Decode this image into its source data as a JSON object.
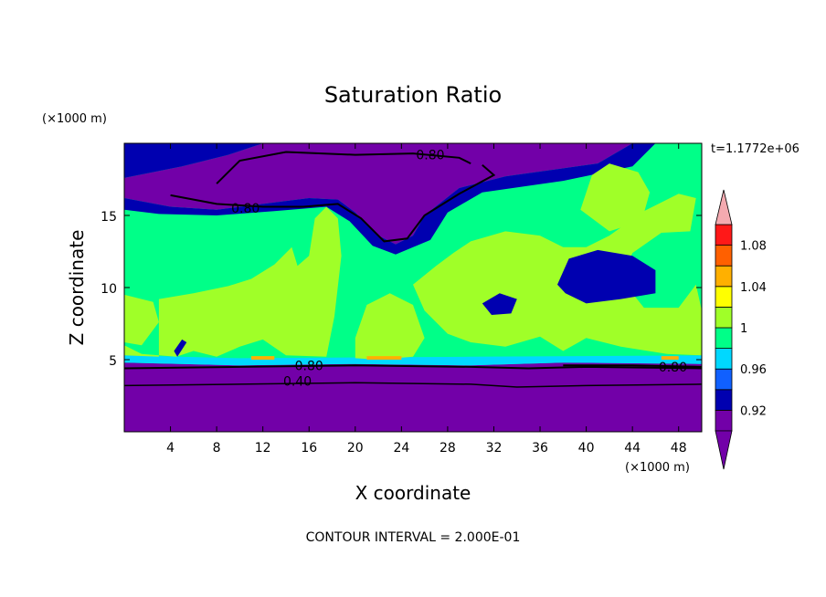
{
  "chart_data": {
    "type": "heatmap",
    "title": "Saturation Ratio",
    "xlabel": "X coordinate",
    "ylabel": "Z coordinate",
    "x_unit_label": "(×1000 m)",
    "y_unit_label": "(×1000 m)",
    "time_label": "t=1.1772e+06",
    "footer": "CONTOUR INTERVAL = 2.000E-01",
    "xlim": [
      0,
      50
    ],
    "ylim": [
      0,
      20
    ],
    "x_ticks": [
      {
        "value": 4,
        "label": "4"
      },
      {
        "value": 8,
        "label": "8"
      },
      {
        "value": 12,
        "label": "12"
      },
      {
        "value": 16,
        "label": "16"
      },
      {
        "value": 20,
        "label": "20"
      },
      {
        "value": 24,
        "label": "24"
      },
      {
        "value": 28,
        "label": "28"
      },
      {
        "value": 32,
        "label": "32"
      },
      {
        "value": 36,
        "label": "36"
      },
      {
        "value": 40,
        "label": "40"
      },
      {
        "value": 44,
        "label": "44"
      },
      {
        "value": 48,
        "label": "48"
      }
    ],
    "y_ticks": [
      {
        "value": 5,
        "label": "5"
      },
      {
        "value": 10,
        "label": "10"
      },
      {
        "value": 15,
        "label": "15"
      }
    ],
    "colorbar": {
      "levels": [
        0.9,
        0.92,
        0.94,
        0.96,
        0.98,
        1.0,
        1.02,
        1.04,
        1.06,
        1.08,
        1.1
      ],
      "colors": [
        "#7200a8",
        "#0000b0",
        "#1060ff",
        "#00d8ff",
        "#00ff88",
        "#a0ff28",
        "#ffff00",
        "#ffb000",
        "#ff6000",
        "#ff1818"
      ],
      "below_color": "#7200a8",
      "above_color": "#f4aab0",
      "tick_labels": [
        {
          "value": 0.92,
          "label": "0.92"
        },
        {
          "value": 0.96,
          "label": "0.96"
        },
        {
          "value": 1.0,
          "label": "1"
        },
        {
          "value": 1.04,
          "label": "1.04"
        },
        {
          "value": 1.08,
          "label": "1.08"
        }
      ]
    },
    "regions": [
      {
        "name": "lower-dry-layer",
        "value": 0.5,
        "points": [
          [
            0,
            0
          ],
          [
            50,
            0
          ],
          [
            50,
            4.7
          ],
          [
            38,
            4.8
          ],
          [
            30,
            4.6
          ],
          [
            20,
            4.7
          ],
          [
            10,
            4.6
          ],
          [
            0,
            4.8
          ]
        ]
      },
      {
        "name": "lower-moist-band",
        "value": 0.97,
        "points": [
          [
            0,
            4.8
          ],
          [
            10,
            4.6
          ],
          [
            20,
            4.7
          ],
          [
            30,
            4.6
          ],
          [
            38,
            4.8
          ],
          [
            50,
            4.7
          ],
          [
            50,
            5.3
          ],
          [
            30,
            5.2
          ],
          [
            10,
            5.1
          ],
          [
            0,
            5.3
          ]
        ]
      },
      {
        "name": "upper-dry-layer",
        "value": 0.7,
        "points": [
          [
            0,
            17.6
          ],
          [
            5,
            18.4
          ],
          [
            9,
            19.2
          ],
          [
            12,
            20
          ],
          [
            44,
            20
          ],
          [
            41,
            18.6
          ],
          [
            33,
            17.7
          ],
          [
            29,
            16.9
          ],
          [
            26,
            15.0
          ],
          [
            25,
            13.6
          ],
          [
            23.5,
            13.0
          ],
          [
            22,
            13.6
          ],
          [
            20,
            15.2
          ],
          [
            18.5,
            16.1
          ],
          [
            16,
            16.2
          ],
          [
            12,
            15.8
          ],
          [
            8,
            15.4
          ],
          [
            4,
            15.6
          ],
          [
            0,
            16.2
          ]
        ]
      },
      {
        "name": "upper-edge-band",
        "value": 0.93,
        "points": [
          [
            0,
            16.2
          ],
          [
            4,
            15.6
          ],
          [
            8,
            15.4
          ],
          [
            12,
            15.8
          ],
          [
            16,
            16.2
          ],
          [
            18.5,
            16.1
          ],
          [
            20,
            15.2
          ],
          [
            22,
            13.6
          ],
          [
            23.5,
            13.0
          ],
          [
            25,
            13.6
          ],
          [
            26,
            15.0
          ],
          [
            29,
            16.9
          ],
          [
            33,
            17.7
          ],
          [
            41,
            18.6
          ],
          [
            44,
            20
          ],
          [
            46,
            20
          ],
          [
            44,
            18.4
          ],
          [
            38,
            17.4
          ],
          [
            31,
            16.6
          ],
          [
            28,
            15.2
          ],
          [
            26.5,
            13.3
          ],
          [
            23.5,
            12.3
          ],
          [
            21.5,
            12.9
          ],
          [
            19.5,
            14.6
          ],
          [
            17.5,
            15.6
          ],
          [
            13,
            15.3
          ],
          [
            8,
            15.0
          ],
          [
            3,
            15.1
          ],
          [
            0,
            15.4
          ]
        ]
      },
      {
        "name": "top-left-dry-strip",
        "value": 0.93,
        "points": [
          [
            0,
            20
          ],
          [
            12,
            20
          ],
          [
            9,
            19.2
          ],
          [
            5,
            18.4
          ],
          [
            0,
            17.6
          ]
        ]
      },
      {
        "name": "supersat-cloud-left",
        "value": 1.01,
        "points": [
          [
            0,
            5.3
          ],
          [
            3,
            5.2
          ],
          [
            3,
            9.2
          ],
          [
            6,
            9.6
          ],
          [
            9,
            10.1
          ],
          [
            11,
            10.6
          ],
          [
            13,
            11.6
          ],
          [
            14.5,
            12.8
          ],
          [
            15,
            11.5
          ],
          [
            16,
            12.2
          ],
          [
            16.5,
            14.8
          ],
          [
            17.5,
            15.6
          ],
          [
            18.5,
            14.8
          ],
          [
            18.8,
            12.2
          ],
          [
            18.2,
            8
          ],
          [
            17.5,
            5.2
          ],
          [
            14,
            5.3
          ],
          [
            12,
            6.4
          ],
          [
            10,
            5.9
          ],
          [
            8,
            5.2
          ],
          [
            6,
            5.6
          ],
          [
            4.5,
            5.2
          ],
          [
            1.5,
            5.4
          ],
          [
            0,
            6.0
          ]
        ]
      },
      {
        "name": "supersat-cloud-left-edge",
        "value": 1.01,
        "points": [
          [
            0,
            6.2
          ],
          [
            1.5,
            6.0
          ],
          [
            3,
            7.6
          ],
          [
            2.5,
            9.0
          ],
          [
            0,
            9.5
          ]
        ]
      },
      {
        "name": "supersat-cloud-mid",
        "value": 1.01,
        "points": [
          [
            20,
            5.1
          ],
          [
            22,
            5.0
          ],
          [
            25,
            5.2
          ],
          [
            26,
            6.5
          ],
          [
            25,
            8.8
          ],
          [
            23,
            9.6
          ],
          [
            21,
            8.8
          ],
          [
            20,
            6.5
          ]
        ]
      },
      {
        "name": "supersat-cloud-right",
        "value": 1.01,
        "points": [
          [
            25,
            10.2
          ],
          [
            27,
            11.5
          ],
          [
            28.5,
            12.4
          ],
          [
            30,
            13.2
          ],
          [
            33,
            13.9
          ],
          [
            36,
            13.6
          ],
          [
            38,
            12.8
          ],
          [
            40,
            12.8
          ],
          [
            42,
            13.6
          ],
          [
            45,
            15.3
          ],
          [
            48,
            16.5
          ],
          [
            49.5,
            16.2
          ],
          [
            49,
            13.9
          ],
          [
            46.5,
            13.8
          ],
          [
            44,
            12.4
          ],
          [
            43,
            10.6
          ],
          [
            45,
            8.6
          ],
          [
            48,
            8.6
          ],
          [
            49.5,
            10.2
          ],
          [
            50,
            8.4
          ],
          [
            50,
            5.3
          ],
          [
            47,
            5.4
          ],
          [
            43,
            5.9
          ],
          [
            40,
            6.5
          ],
          [
            38,
            5.6
          ],
          [
            36,
            6.6
          ],
          [
            33,
            5.9
          ],
          [
            30,
            6.2
          ],
          [
            28,
            6.8
          ],
          [
            26,
            8.4
          ]
        ]
      },
      {
        "name": "supersat-cloud-upper-right",
        "value": 1.01,
        "points": [
          [
            39.5,
            15.4
          ],
          [
            40.5,
            17.8
          ],
          [
            42,
            18.6
          ],
          [
            44.5,
            18.0
          ],
          [
            45.5,
            16.6
          ],
          [
            44.8,
            14.6
          ],
          [
            42,
            13.9
          ]
        ]
      },
      {
        "name": "dry-pocket-right",
        "value": 0.93,
        "points": [
          [
            37.5,
            10.2
          ],
          [
            38.5,
            12.0
          ],
          [
            41,
            12.6
          ],
          [
            44,
            12.2
          ],
          [
            46,
            11.2
          ],
          [
            46,
            9.6
          ],
          [
            43,
            9.2
          ],
          [
            40,
            8.9
          ],
          [
            38.2,
            9.6
          ]
        ]
      },
      {
        "name": "dry-pocket-small",
        "value": 0.93,
        "points": [
          [
            31,
            8.9
          ],
          [
            32.5,
            9.6
          ],
          [
            34,
            9.2
          ],
          [
            33.5,
            8.2
          ],
          [
            31.8,
            8.1
          ]
        ]
      },
      {
        "name": "dry-pocket-left",
        "value": 0.93,
        "points": [
          [
            4.6,
            5.2
          ],
          [
            5.4,
            6.2
          ],
          [
            5.0,
            6.4
          ],
          [
            4.3,
            5.6
          ]
        ]
      },
      {
        "name": "warm-streak-1",
        "value": 1.05,
        "points": [
          [
            11,
            5.0
          ],
          [
            13,
            5.0
          ],
          [
            13,
            5.25
          ],
          [
            11,
            5.25
          ]
        ]
      },
      {
        "name": "warm-streak-2",
        "value": 1.05,
        "points": [
          [
            21,
            5.0
          ],
          [
            24,
            5.0
          ],
          [
            24,
            5.25
          ],
          [
            21,
            5.25
          ]
        ]
      },
      {
        "name": "warm-streak-3",
        "value": 1.05,
        "points": [
          [
            46.5,
            5.0
          ],
          [
            48,
            5.0
          ],
          [
            48,
            5.25
          ],
          [
            46.5,
            5.25
          ]
        ]
      }
    ],
    "contours": [
      {
        "level": 0.4,
        "label": "0.40",
        "label_at": [
          15,
          3.5
        ],
        "points": [
          [
            0,
            3.2
          ],
          [
            10,
            3.3
          ],
          [
            20,
            3.4
          ],
          [
            30,
            3.3
          ],
          [
            34,
            3.1
          ],
          [
            40,
            3.2
          ],
          [
            50,
            3.3
          ]
        ]
      },
      {
        "level": 0.8,
        "label": "0.80",
        "label_at": [
          16,
          4.6
        ],
        "points": [
          [
            0,
            4.4
          ],
          [
            10,
            4.5
          ],
          [
            20,
            4.6
          ],
          [
            30,
            4.5
          ],
          [
            35,
            4.4
          ],
          [
            40,
            4.5
          ],
          [
            50,
            4.4
          ]
        ]
      },
      {
        "level": 0.8,
        "label": "0.80",
        "label_at": [
          47.5,
          4.5
        ],
        "points": [
          [
            38,
            4.6
          ],
          [
            44,
            4.6
          ],
          [
            50,
            4.5
          ]
        ]
      },
      {
        "level": 0.8,
        "label": "0.80",
        "label_at": [
          10.5,
          15.5
        ],
        "points": [
          [
            4,
            16.4
          ],
          [
            8,
            15.8
          ],
          [
            12,
            15.6
          ],
          [
            15.5,
            15.6
          ],
          [
            18.5,
            15.8
          ],
          [
            20.5,
            14.8
          ],
          [
            22.5,
            13.2
          ],
          [
            24.5,
            13.4
          ],
          [
            26,
            15.0
          ],
          [
            29,
            16.5
          ],
          [
            32,
            17.8
          ],
          [
            31,
            18.5
          ]
        ]
      },
      {
        "level": 0.8,
        "label": "0.80",
        "label_at": [
          26.5,
          19.2
        ],
        "points": [
          [
            8,
            17.2
          ],
          [
            10,
            18.8
          ],
          [
            14,
            19.4
          ],
          [
            20,
            19.2
          ],
          [
            25,
            19.3
          ],
          [
            29,
            19.0
          ],
          [
            30,
            18.6
          ]
        ]
      }
    ]
  }
}
